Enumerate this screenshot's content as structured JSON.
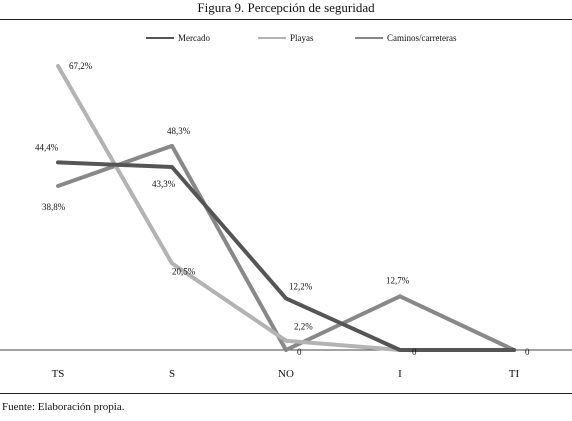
{
  "figure": {
    "title": "Figura 9. Percepción de seguridad",
    "source": "Fuente: Elaboración propia."
  },
  "chart_data": {
    "type": "line",
    "title": "",
    "xlabel": "",
    "ylabel": "",
    "categories": [
      "TS",
      "S",
      "NO",
      "I",
      "TI"
    ],
    "ylim": [
      0,
      70
    ],
    "grid": false,
    "legend": "top",
    "series": [
      {
        "name": "Mercado",
        "color": "#555555",
        "values": [
          44.4,
          43.3,
          12.2,
          0,
          0
        ]
      },
      {
        "name": "Playas",
        "color": "#b3b3b3",
        "values": [
          67.2,
          20.5,
          2.2,
          0,
          0
        ]
      },
      {
        "name": "Caminos/carreteras",
        "color": "#888888",
        "values": [
          38.8,
          48.3,
          0,
          12.7,
          0
        ]
      }
    ],
    "data_labels": [
      {
        "text": "44,4%",
        "category": 0,
        "value": 44.4
      },
      {
        "text": "38,8%",
        "category": 0,
        "value": 38.8
      },
      {
        "text": "67,2%",
        "category": 0,
        "value": 67.2
      },
      {
        "text": "48,3%",
        "category": 1,
        "value": 48.3
      },
      {
        "text": "43,3%",
        "category": 1,
        "value": 43.3
      },
      {
        "text": "20,5%",
        "category": 1,
        "value": 20.5
      },
      {
        "text": "12,2%",
        "category": 2,
        "value": 12.2
      },
      {
        "text": "2,2%",
        "category": 2,
        "value": 2.2
      },
      {
        "text": "0",
        "category": 2,
        "value": 0
      },
      {
        "text": "12,7%",
        "category": 3,
        "value": 12.7
      },
      {
        "text": "0",
        "category": 3,
        "value": 0
      },
      {
        "text": "0",
        "category": 4,
        "value": 0
      }
    ]
  }
}
